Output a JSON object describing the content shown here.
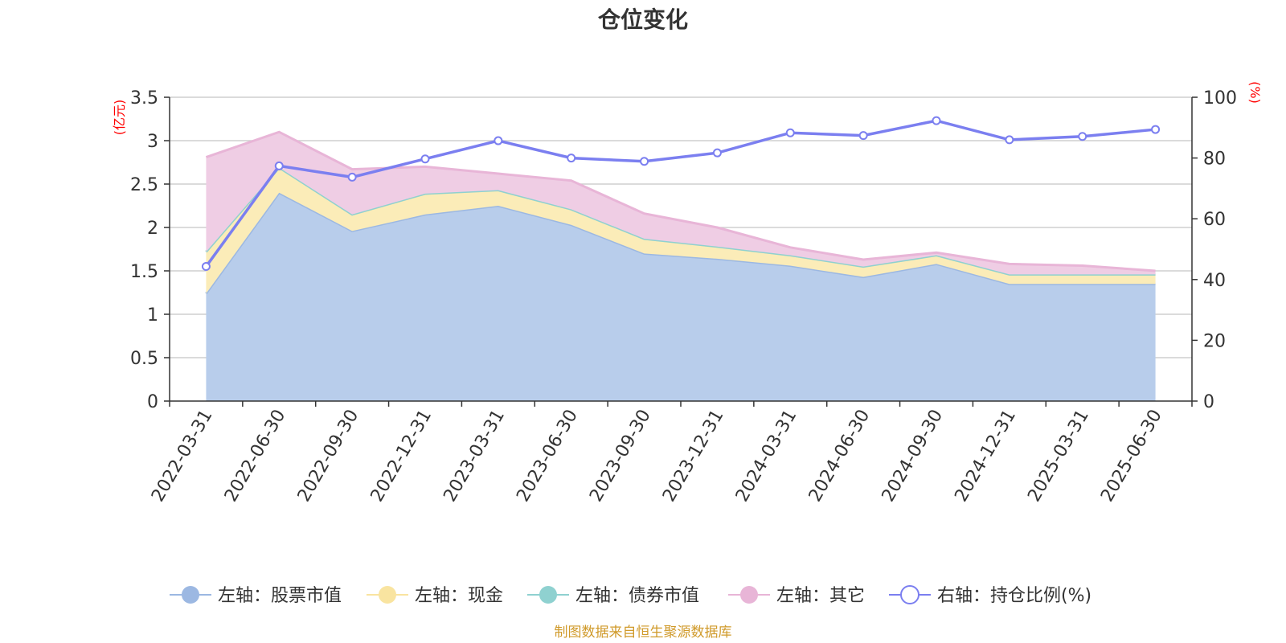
{
  "title": "仓位变化",
  "footer": "制图数据来自恒生聚源数据库",
  "chart_data": {
    "type": "area",
    "title": "仓位变化",
    "categories": [
      "2022-03-31",
      "2022-06-30",
      "2022-09-30",
      "2022-12-31",
      "2023-03-31",
      "2023-06-30",
      "2023-09-30",
      "2023-12-31",
      "2024-03-31",
      "2024-06-30",
      "2024-09-30",
      "2024-12-31",
      "2025-03-31",
      "2025-06-30"
    ],
    "y_left": {
      "unit": "(亿元)",
      "min": 0,
      "max": 3.5,
      "ticks": [
        "0",
        "0.5",
        "1",
        "1.5",
        "2",
        "2.5",
        "3",
        "3.5"
      ]
    },
    "y_right": {
      "unit": "(%)",
      "min": 0,
      "max": 100,
      "ticks": [
        "0",
        "20",
        "40",
        "60",
        "80",
        "100"
      ]
    },
    "series": [
      {
        "name": "左轴：股票市值",
        "axis": "left",
        "stack": true,
        "color": "#9cb8e2",
        "fill": "#b8cdeb",
        "values": [
          1.24,
          2.4,
          1.96,
          2.15,
          2.25,
          2.03,
          1.7,
          1.64,
          1.56,
          1.43,
          1.58,
          1.35,
          1.35,
          1.35
        ]
      },
      {
        "name": "左轴：现金",
        "axis": "left",
        "stack": true,
        "color": "#f9e4a0",
        "fill": "#fbecb8",
        "values": [
          0.48,
          0.29,
          0.19,
          0.24,
          0.18,
          0.18,
          0.17,
          0.14,
          0.12,
          0.12,
          0.1,
          0.11,
          0.11,
          0.11
        ]
      },
      {
        "name": "左轴：债券市值",
        "axis": "left",
        "stack": true,
        "color": "#8fd1d0",
        "fill": "#b2e0df",
        "values": [
          0,
          0,
          0,
          0,
          0,
          0,
          0,
          0,
          0,
          0,
          0,
          0,
          0,
          0
        ]
      },
      {
        "name": "左轴：其它",
        "axis": "left",
        "stack": true,
        "color": "#e8b5d7",
        "fill": "#efcde4",
        "values": [
          1.09,
          0.41,
          0.52,
          0.31,
          0.19,
          0.33,
          0.29,
          0.22,
          0.09,
          0.08,
          0.03,
          0.12,
          0.1,
          0.04
        ]
      },
      {
        "name": "右轴：持仓比例(%)",
        "axis": "right",
        "stack": false,
        "color": "#7b7ff0",
        "values": [
          44.3,
          77.4,
          73.7,
          79.7,
          85.7,
          80.0,
          78.9,
          81.7,
          88.3,
          87.4,
          92.3,
          86.0,
          87.1,
          89.4
        ]
      }
    ],
    "legend_position": "bottom",
    "grid": true
  }
}
